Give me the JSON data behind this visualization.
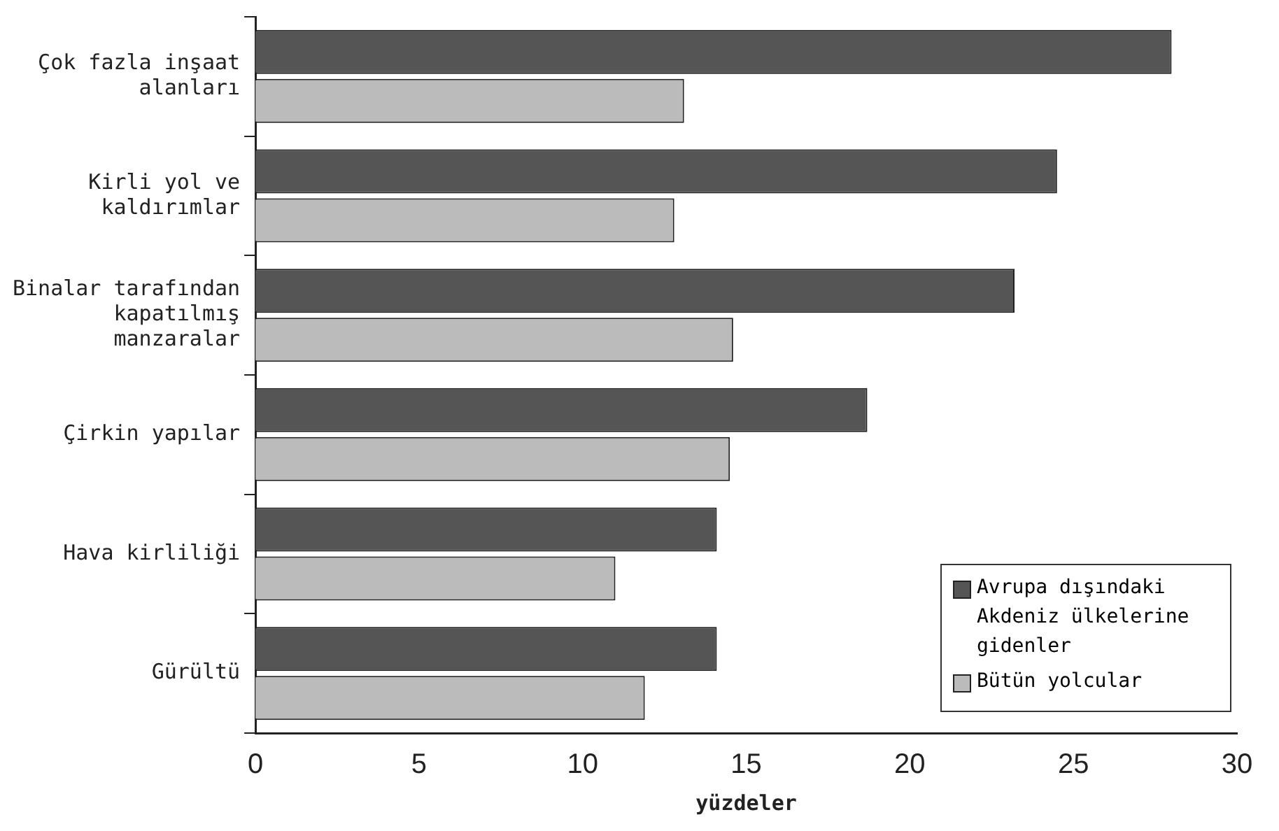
{
  "chart_data": {
    "type": "bar",
    "orientation": "horizontal",
    "xlabel": "yüzdeler",
    "categories": [
      "Çok fazla inşaat alanları",
      "Kirli yol ve kaldırımlar",
      "Binalar tarafından kapatılmış manzaralar",
      "Çirkin yapılar",
      "Hava kirliliği",
      "Gürültü"
    ],
    "series": [
      {
        "name": "Avrupa dışındaki Akdeniz ülkelerine gidenler",
        "color": "#555555",
        "values": [
          28.0,
          24.5,
          23.2,
          18.7,
          14.1,
          14.1
        ]
      },
      {
        "name": "Bütün yolcular",
        "color": "#bbbbbb",
        "values": [
          13.1,
          12.8,
          14.6,
          14.5,
          11.0,
          11.9
        ]
      }
    ],
    "xlim": [
      0,
      30
    ],
    "xticks": [
      0,
      5,
      10,
      15,
      20,
      25,
      30
    ],
    "grid": false,
    "legend": "bottom right"
  }
}
